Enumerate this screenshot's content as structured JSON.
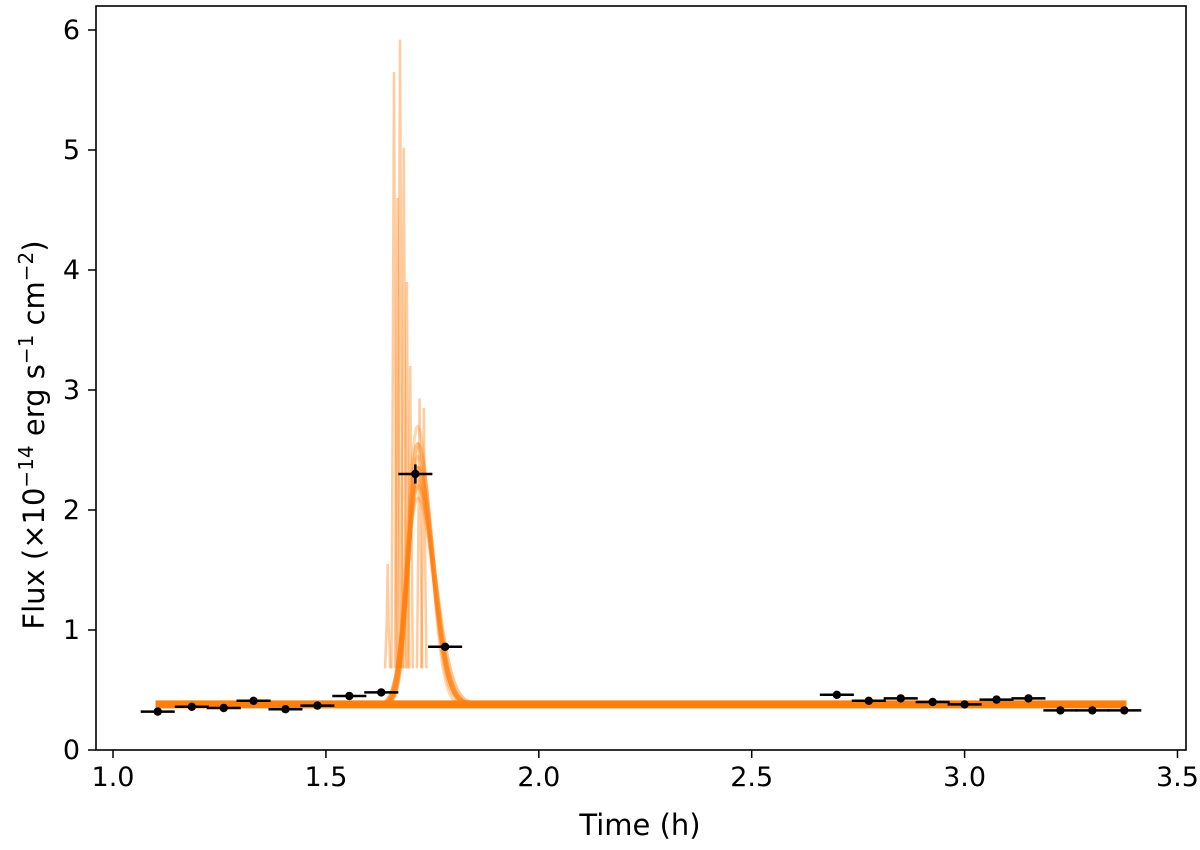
{
  "chart_data": {
    "type": "line",
    "xlabel": "Time (h)",
    "ylabel": {
      "prefix": "Flux (×10",
      "exp1": "−14",
      "mid1": " erg s",
      "exp2": "−1",
      "mid2": " cm",
      "exp3": "−2",
      "suffix": ")"
    },
    "xlim": [
      0.96,
      3.52
    ],
    "ylim": [
      0,
      6.2
    ],
    "xticks": [
      1.0,
      1.5,
      2.0,
      2.5,
      3.0,
      3.5
    ],
    "xtick_labels": [
      "1.0",
      "1.5",
      "2.0",
      "2.5",
      "3.0",
      "3.5"
    ],
    "yticks": [
      0,
      1,
      2,
      3,
      4,
      5,
      6
    ],
    "ytick_labels": [
      "0",
      "1",
      "2",
      "3",
      "4",
      "5",
      "6"
    ],
    "grid": false,
    "model_color": "#ff7f0e",
    "data_color": "#000000",
    "model": {
      "baseline": 0.38,
      "peak_time": 1.715,
      "peak_flux": 2.25,
      "rise_start": 1.63,
      "decay_end": 1.85,
      "spikes": [
        {
          "x": 1.645,
          "y": 1.55
        },
        {
          "x": 1.66,
          "y": 5.65
        },
        {
          "x": 1.668,
          "y": 4.6
        },
        {
          "x": 1.674,
          "y": 5.92
        },
        {
          "x": 1.683,
          "y": 5.02
        },
        {
          "x": 1.69,
          "y": 3.9
        },
        {
          "x": 1.698,
          "y": 3.2
        },
        {
          "x": 1.72,
          "y": 2.93
        },
        {
          "x": 1.73,
          "y": 2.85
        }
      ]
    },
    "points": [
      {
        "x": 1.105,
        "y": 0.32,
        "xerr": 0.04,
        "yerr": 0.01
      },
      {
        "x": 1.185,
        "y": 0.36,
        "xerr": 0.04,
        "yerr": 0.01
      },
      {
        "x": 1.26,
        "y": 0.35,
        "xerr": 0.04,
        "yerr": 0.01
      },
      {
        "x": 1.33,
        "y": 0.41,
        "xerr": 0.04,
        "yerr": 0.01
      },
      {
        "x": 1.405,
        "y": 0.34,
        "xerr": 0.04,
        "yerr": 0.01
      },
      {
        "x": 1.48,
        "y": 0.37,
        "xerr": 0.04,
        "yerr": 0.01
      },
      {
        "x": 1.555,
        "y": 0.45,
        "xerr": 0.04,
        "yerr": 0.01
      },
      {
        "x": 1.63,
        "y": 0.48,
        "xerr": 0.04,
        "yerr": 0.01
      },
      {
        "x": 1.71,
        "y": 2.3,
        "xerr": 0.04,
        "yerr": 0.08
      },
      {
        "x": 1.78,
        "y": 0.86,
        "xerr": 0.04,
        "yerr": 0.03
      },
      {
        "x": 2.7,
        "y": 0.46,
        "xerr": 0.04,
        "yerr": 0.01
      },
      {
        "x": 2.775,
        "y": 0.41,
        "xerr": 0.04,
        "yerr": 0.01
      },
      {
        "x": 2.85,
        "y": 0.43,
        "xerr": 0.04,
        "yerr": 0.01
      },
      {
        "x": 2.925,
        "y": 0.4,
        "xerr": 0.04,
        "yerr": 0.01
      },
      {
        "x": 3.0,
        "y": 0.38,
        "xerr": 0.04,
        "yerr": 0.01
      },
      {
        "x": 3.075,
        "y": 0.42,
        "xerr": 0.04,
        "yerr": 0.01
      },
      {
        "x": 3.15,
        "y": 0.43,
        "xerr": 0.04,
        "yerr": 0.01
      },
      {
        "x": 3.225,
        "y": 0.33,
        "xerr": 0.04,
        "yerr": 0.01
      },
      {
        "x": 3.3,
        "y": 0.33,
        "xerr": 0.04,
        "yerr": 0.01
      },
      {
        "x": 3.375,
        "y": 0.33,
        "xerr": 0.04,
        "yerr": 0.01
      }
    ]
  }
}
